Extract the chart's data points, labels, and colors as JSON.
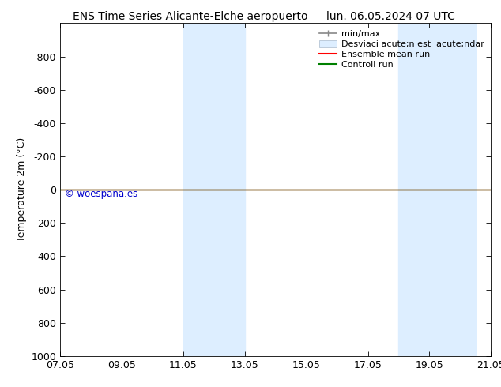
{
  "title_left": "ENS Time Series Alicante-Elche aeropuerto",
  "title_right": "lun. 06.05.2024 07 UTC",
  "ylabel": "Temperature 2m (°C)",
  "ylim_top": -1000,
  "ylim_bottom": 1000,
  "yticks": [
    -800,
    -600,
    -400,
    -200,
    0,
    200,
    400,
    600,
    800,
    1000
  ],
  "xticks_labels": [
    "07.05",
    "09.05",
    "11.05",
    "13.05",
    "15.05",
    "17.05",
    "19.05",
    "21.05"
  ],
  "xticks_pos": [
    0,
    2,
    4,
    6,
    8,
    10,
    12,
    14
  ],
  "xlim": [
    0,
    14
  ],
  "shaded_bands": [
    {
      "x_start": 4,
      "x_end": 6
    },
    {
      "x_start": 11,
      "x_end": 13.5
    }
  ],
  "green_line_y": 0,
  "red_line_y": 0,
  "watermark": "© woespana.es",
  "watermark_color": "#0000cc",
  "shading_color": "#ddeeff",
  "background_color": "#ffffff",
  "green_line_color": "#008000",
  "red_line_color": "#ff0000",
  "legend_label_minmax": "min/max",
  "legend_label_desv": "Desviaci acute;n est  acute;ndar",
  "legend_label_ensemble": "Ensemble mean run",
  "legend_label_control": "Controll run",
  "legend_fontsize": 8,
  "title_fontsize": 10,
  "ylabel_fontsize": 9,
  "tick_fontsize": 9
}
